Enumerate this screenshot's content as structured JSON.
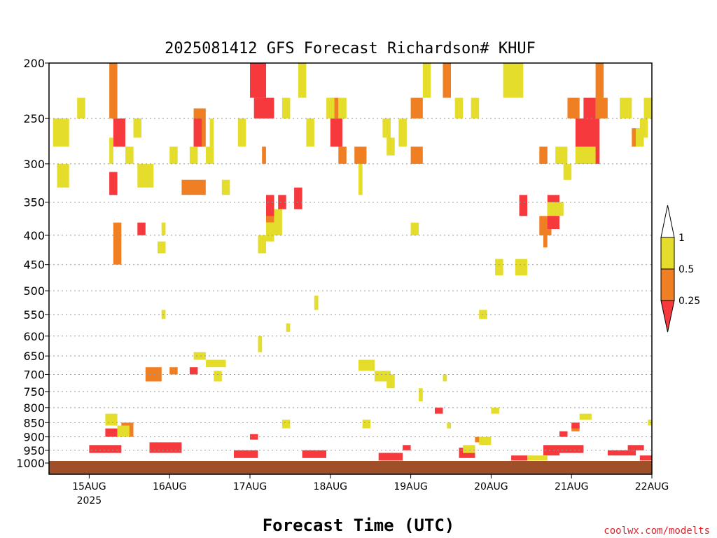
{
  "chart_data": {
    "type": "heatmap",
    "title": "2025081412 GFS Forecast Richardson# KHUF",
    "xlabel": "Forecast Time (UTC)",
    "ylabel": "",
    "credit": "coolwx.com/modelts",
    "y_scale": "log-pressure (hPa), inverted",
    "ylim": [
      1000,
      200
    ],
    "y_ticks": [
      "200",
      "250",
      "300",
      "350",
      "400",
      "450",
      "500",
      "550",
      "600",
      "650",
      "700",
      "750",
      "800",
      "850",
      "900",
      "950",
      "1000"
    ],
    "x_ticks": [
      {
        "day": 15,
        "label": "15AUG",
        "sublabel": "2025"
      },
      {
        "day": 16,
        "label": "16AUG",
        "sublabel": ""
      },
      {
        "day": 17,
        "label": "17AUG",
        "sublabel": ""
      },
      {
        "day": 18,
        "label": "18AUG",
        "sublabel": ""
      },
      {
        "day": 19,
        "label": "19AUG",
        "sublabel": ""
      },
      {
        "day": 20,
        "label": "20AUG",
        "sublabel": ""
      },
      {
        "day": 21,
        "label": "21AUG",
        "sublabel": ""
      },
      {
        "day": 22,
        "label": "22AUG",
        "sublabel": ""
      }
    ],
    "xlim_days": [
      14.5,
      22.0
    ],
    "grid": "dotted horizontal at y ticks",
    "colorbar": {
      "levels": [
        "1",
        "0.5",
        "0.25"
      ],
      "colors": {
        "above_1": "#ffffff",
        "yellow": "#e5dd2b",
        "orange": "#ef7f22",
        "red": "#f6393c"
      }
    },
    "colors": {
      "ground": "#a05028",
      "yellow": "#e5dd2b",
      "orange": "#ef7f22",
      "red": "#f6393c"
    },
    "series": [
      {
        "category": "0.25-0.5",
        "color": "orange",
        "cells": [
          [
            15.25,
            15.35,
            200,
            250
          ],
          [
            15.3,
            15.4,
            380,
            450
          ],
          [
            16.15,
            16.45,
            320,
            340
          ],
          [
            16.3,
            16.45,
            240,
            280
          ],
          [
            17.15,
            17.2,
            280,
            300
          ],
          [
            17.2,
            17.3,
            360,
            380
          ],
          [
            18.1,
            18.2,
            280,
            300
          ],
          [
            18.3,
            18.45,
            280,
            300
          ],
          [
            18.0,
            18.1,
            230,
            250
          ],
          [
            19.0,
            19.15,
            280,
            300
          ],
          [
            19.0,
            19.15,
            230,
            250
          ],
          [
            19.4,
            19.5,
            200,
            230
          ],
          [
            20.6,
            20.75,
            370,
            400
          ],
          [
            20.6,
            20.7,
            280,
            300
          ],
          [
            20.95,
            21.1,
            230,
            250
          ],
          [
            21.3,
            21.45,
            230,
            250
          ],
          [
            21.3,
            21.4,
            200,
            230
          ],
          [
            21.75,
            21.85,
            260,
            280
          ],
          [
            16.0,
            16.1,
            680,
            700
          ],
          [
            15.7,
            15.9,
            680,
            720
          ],
          [
            15.4,
            15.55,
            850,
            900
          ],
          [
            19.8,
            19.9,
            900,
            920
          ],
          [
            21.0,
            21.1,
            860,
            880
          ],
          [
            20.65,
            20.7,
            400,
            420
          ]
        ]
      },
      {
        "category": "below 0.25",
        "color": "red",
        "cells": [
          [
            15.3,
            15.45,
            250,
            280
          ],
          [
            15.25,
            15.35,
            310,
            340
          ],
          [
            15.6,
            15.7,
            380,
            400
          ],
          [
            16.3,
            16.4,
            250,
            280
          ],
          [
            17.0,
            17.2,
            200,
            230
          ],
          [
            17.05,
            17.3,
            230,
            250
          ],
          [
            17.2,
            17.3,
            340,
            370
          ],
          [
            17.35,
            17.45,
            340,
            360
          ],
          [
            17.55,
            17.65,
            330,
            360
          ],
          [
            18.0,
            18.15,
            250,
            280
          ],
          [
            20.35,
            20.45,
            340,
            370
          ],
          [
            20.7,
            20.85,
            340,
            390
          ],
          [
            21.05,
            21.35,
            250,
            300
          ],
          [
            21.15,
            21.3,
            230,
            260
          ],
          [
            15.0,
            15.4,
            930,
            960
          ],
          [
            15.75,
            16.15,
            920,
            960
          ],
          [
            16.8,
            17.1,
            950,
            980
          ],
          [
            17.65,
            17.95,
            950,
            980
          ],
          [
            18.6,
            18.9,
            960,
            990
          ],
          [
            19.6,
            19.8,
            940,
            980
          ],
          [
            20.65,
            20.85,
            930,
            970
          ],
          [
            20.85,
            21.15,
            930,
            960
          ],
          [
            21.45,
            21.8,
            950,
            970
          ],
          [
            21.7,
            21.9,
            930,
            950
          ],
          [
            21.85,
            22.0,
            970,
            990
          ],
          [
            15.2,
            15.35,
            870,
            900
          ],
          [
            16.25,
            16.35,
            680,
            700
          ],
          [
            17.0,
            17.1,
            890,
            910
          ],
          [
            18.9,
            19.0,
            930,
            950
          ],
          [
            19.3,
            19.4,
            800,
            820
          ],
          [
            20.25,
            20.45,
            970,
            990
          ],
          [
            21.0,
            21.1,
            850,
            870
          ],
          [
            20.85,
            20.95,
            880,
            900
          ]
        ]
      },
      {
        "category": "0.5-1",
        "color": "yellow",
        "cells": [
          [
            14.55,
            14.75,
            250,
            280
          ],
          [
            14.6,
            14.75,
            300,
            330
          ],
          [
            14.85,
            14.95,
            230,
            250
          ],
          [
            15.25,
            15.3,
            270,
            300
          ],
          [
            15.45,
            15.55,
            280,
            300
          ],
          [
            15.55,
            15.65,
            250,
            270
          ],
          [
            15.6,
            15.8,
            300,
            330
          ],
          [
            16.0,
            16.1,
            280,
            300
          ],
          [
            16.25,
            16.35,
            280,
            300
          ],
          [
            16.45,
            16.55,
            280,
            300
          ],
          [
            16.5,
            16.55,
            250,
            280
          ],
          [
            16.65,
            16.75,
            320,
            340
          ],
          [
            16.85,
            16.95,
            250,
            280
          ],
          [
            17.1,
            17.2,
            400,
            430
          ],
          [
            17.2,
            17.3,
            380,
            410
          ],
          [
            17.3,
            17.4,
            360,
            400
          ],
          [
            17.4,
            17.5,
            230,
            250
          ],
          [
            17.6,
            17.7,
            200,
            230
          ],
          [
            17.7,
            17.8,
            250,
            280
          ],
          [
            17.95,
            18.05,
            230,
            250
          ],
          [
            18.1,
            18.2,
            230,
            250
          ],
          [
            18.35,
            18.4,
            300,
            340
          ],
          [
            18.65,
            18.75,
            250,
            270
          ],
          [
            18.7,
            18.8,
            270,
            290
          ],
          [
            18.85,
            18.95,
            250,
            280
          ],
          [
            19.0,
            19.1,
            380,
            400
          ],
          [
            19.15,
            19.25,
            200,
            230
          ],
          [
            19.55,
            19.65,
            230,
            250
          ],
          [
            19.75,
            19.85,
            230,
            250
          ],
          [
            20.15,
            20.4,
            200,
            230
          ],
          [
            20.05,
            20.15,
            440,
            470
          ],
          [
            20.3,
            20.45,
            440,
            470
          ],
          [
            20.7,
            20.9,
            350,
            370
          ],
          [
            20.8,
            20.95,
            280,
            300
          ],
          [
            20.9,
            21.0,
            300,
            320
          ],
          [
            21.05,
            21.3,
            280,
            300
          ],
          [
            21.6,
            21.75,
            230,
            250
          ],
          [
            21.8,
            21.9,
            260,
            280
          ],
          [
            21.85,
            21.95,
            250,
            270
          ],
          [
            21.9,
            22.0,
            230,
            250
          ],
          [
            15.9,
            15.95,
            540,
            560
          ],
          [
            17.45,
            17.5,
            570,
            590
          ],
          [
            17.8,
            17.85,
            510,
            540
          ],
          [
            19.85,
            19.95,
            540,
            560
          ],
          [
            15.85,
            15.95,
            410,
            430
          ],
          [
            15.9,
            15.95,
            380,
            400
          ],
          [
            16.3,
            16.45,
            640,
            660
          ],
          [
            16.45,
            16.7,
            660,
            680
          ],
          [
            16.55,
            16.65,
            690,
            720
          ],
          [
            17.1,
            17.15,
            600,
            640
          ],
          [
            18.35,
            18.55,
            660,
            690
          ],
          [
            18.55,
            18.75,
            690,
            720
          ],
          [
            18.7,
            18.8,
            700,
            740
          ],
          [
            19.1,
            19.15,
            740,
            780
          ],
          [
            19.4,
            19.45,
            700,
            720
          ],
          [
            20.0,
            20.1,
            800,
            820
          ],
          [
            15.2,
            15.35,
            820,
            860
          ],
          [
            15.35,
            15.5,
            860,
            900
          ],
          [
            17.4,
            17.5,
            840,
            870
          ],
          [
            18.4,
            18.5,
            840,
            870
          ],
          [
            19.45,
            19.5,
            850,
            870
          ],
          [
            19.65,
            19.8,
            930,
            960
          ],
          [
            19.85,
            20.0,
            900,
            930
          ],
          [
            21.1,
            21.25,
            820,
            840
          ],
          [
            21.95,
            22.0,
            840,
            860
          ],
          [
            20.45,
            20.7,
            970,
            990
          ]
        ]
      }
    ]
  }
}
